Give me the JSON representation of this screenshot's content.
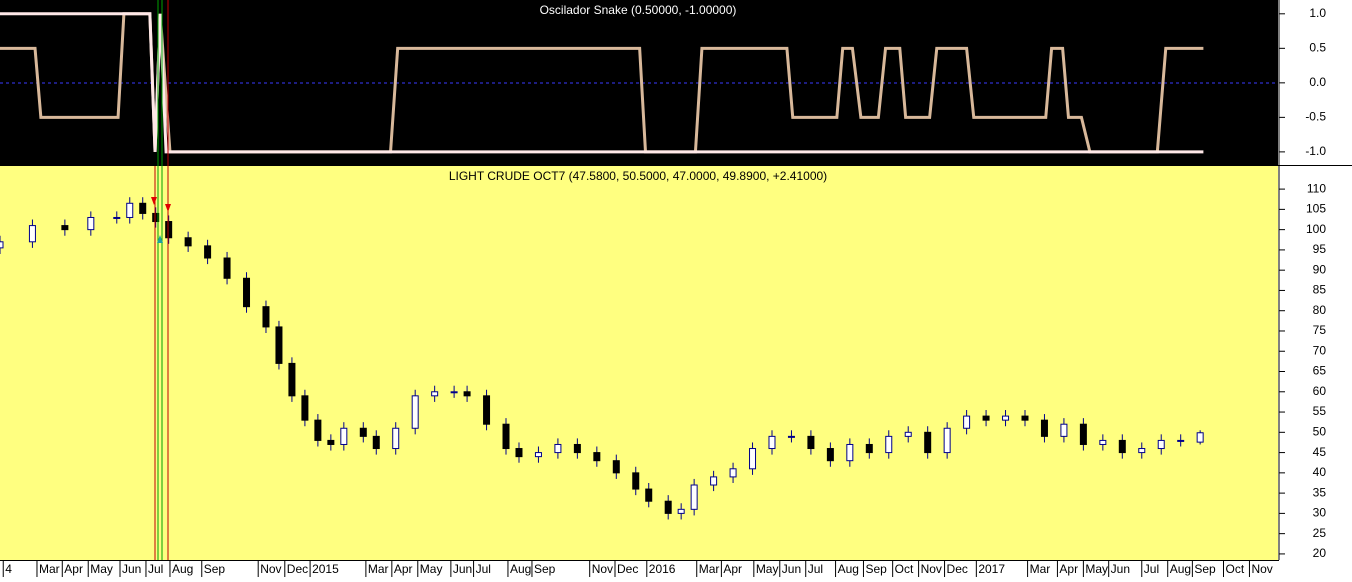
{
  "chart_data": [
    {
      "type": "line",
      "title": "Oscilador Snake (0.50000, -1.00000)",
      "xlim": [
        0,
        197
      ],
      "ylim": [
        -1.19,
        1.2
      ],
      "yticks": [
        {
          "value": 1,
          "label": "1.0"
        },
        0.5,
        {
          "value": 0,
          "label": "0.0"
        },
        -0.5,
        {
          "value": -1,
          "label": "-1.0"
        }
      ],
      "series": [
        {
          "color": "#d8b89a",
          "x": [
            0,
            5.4,
            6.3,
            18.2,
            19.1,
            23.1,
            23.9,
            24.7,
            26.2,
            60.2,
            61.3,
            98.6,
            99.5,
            107.2,
            108.2,
            121.3,
            122.2,
            129,
            129.9,
            131.4,
            132.7,
            135.4,
            136.5,
            138.7,
            139.6,
            143.3,
            144.4,
            149,
            150.1,
            161.2,
            162.1,
            163.8,
            164.7,
            166.7,
            168,
            178.4,
            179.7,
            185.5
          ],
          "values": [
            0.5,
            0.5,
            -0.5,
            -0.5,
            1,
            1,
            -1,
            1,
            -1,
            -1,
            0.5,
            0.5,
            -1,
            -1,
            0.5,
            0.5,
            -0.5,
            -0.5,
            0.5,
            0.5,
            -0.5,
            -0.5,
            0.5,
            0.5,
            -0.5,
            -0.5,
            0.5,
            0.5,
            -0.5,
            -0.5,
            0.5,
            0.5,
            -0.5,
            -0.5,
            -1,
            -1,
            0.5,
            0.5
          ]
        },
        {
          "color": "#ffe8e8",
          "x": [
            0,
            23.1,
            23.9,
            24.7,
            25.6,
            185.5
          ],
          "values": [
            1,
            1,
            -1,
            1,
            -1,
            -1
          ]
        }
      ]
    },
    {
      "type": "candlestick",
      "title": "LIGHT CRUDE OCT7 (47.5800, 50.5000, 47.0000, 49.8900, +2.41000)",
      "xlim": [
        0,
        197
      ],
      "ylim": [
        18.5,
        115.7
      ],
      "yticks": [
        110,
        105,
        100,
        95,
        90,
        85,
        80,
        75,
        70,
        65,
        60,
        55,
        50,
        45,
        40,
        35,
        30,
        25,
        20
      ],
      "xticks": [
        {
          "value": 0.5,
          "label": "4"
        },
        {
          "value": 5.7,
          "label": "Mar"
        },
        {
          "value": 9.6,
          "label": "Apr"
        },
        {
          "value": 13.6,
          "label": "May"
        },
        {
          "value": 18.5,
          "label": "Jun"
        },
        {
          "value": 22.5,
          "label": "Jul"
        },
        {
          "value": 26.2,
          "label": "Aug"
        },
        {
          "value": 31.1,
          "label": "Sep"
        },
        {
          "value": 39.8,
          "label": "Nov"
        },
        {
          "value": 43.9,
          "label": "Dec"
        },
        {
          "value": 47.8,
          "label": "2015"
        },
        {
          "value": 56.4,
          "label": "Mar"
        },
        {
          "value": 60.4,
          "label": "Apr"
        },
        {
          "value": 64.4,
          "label": "May"
        },
        {
          "value": 69.5,
          "label": "Jun"
        },
        {
          "value": 73.0,
          "label": "Jul"
        },
        {
          "value": 78.3,
          "label": "Aug"
        },
        {
          "value": 82.0,
          "label": "Sep"
        },
        {
          "value": 90.9,
          "label": "Nov"
        },
        {
          "value": 94.8,
          "label": "Dec"
        },
        {
          "value": 99.7,
          "label": "2016"
        },
        {
          "value": 107.4,
          "label": "Mar"
        },
        {
          "value": 111.2,
          "label": "Apr"
        },
        {
          "value": 116.2,
          "label": "May"
        },
        {
          "value": 120.2,
          "label": "Jun"
        },
        {
          "value": 124.2,
          "label": "Jul"
        },
        {
          "value": 128.8,
          "label": "Aug"
        },
        {
          "value": 133.1,
          "label": "Sep"
        },
        {
          "value": 137.6,
          "label": "Oct"
        },
        {
          "value": 141.6,
          "label": "Nov"
        },
        {
          "value": 145.6,
          "label": "Dec"
        },
        {
          "value": 150.5,
          "label": "2017"
        },
        {
          "value": 158.4,
          "label": "Mar"
        },
        {
          "value": 163.0,
          "label": "Apr"
        },
        {
          "value": 167.0,
          "label": "May"
        },
        {
          "value": 170.9,
          "label": "Jun"
        },
        {
          "value": 176.0,
          "label": "Jul"
        },
        {
          "value": 180.0,
          "label": "Aug"
        },
        {
          "value": 183.8,
          "label": "Sep"
        },
        {
          "value": 188.6,
          "label": "Oct"
        },
        {
          "value": 192.6,
          "label": "Nov"
        }
      ],
      "up_color": "#ffffff",
      "down_color": "#000000",
      "wick_color": "#00008b",
      "x": [
        0,
        5,
        10,
        14,
        18,
        20,
        22,
        24,
        26,
        29,
        32,
        35,
        38,
        41,
        43,
        45,
        47,
        49,
        51,
        53,
        56,
        58,
        61,
        64,
        67,
        70,
        72,
        75,
        78,
        80,
        83,
        86,
        89,
        92,
        95,
        98,
        100,
        103,
        105,
        107,
        110,
        113,
        116,
        119,
        122,
        125,
        128,
        131,
        134,
        137,
        140,
        143,
        146,
        149,
        152,
        155,
        158,
        161,
        164,
        167,
        170,
        173,
        176,
        179,
        182,
        185
      ],
      "open": [
        95.5,
        97,
        101,
        100,
        103,
        103,
        106.5,
        104,
        102,
        98,
        96,
        93,
        88,
        81,
        76,
        67,
        59,
        53,
        48,
        47,
        51,
        49,
        46,
        51,
        59,
        60,
        60,
        59,
        52,
        46,
        44,
        45,
        47,
        45,
        43,
        40,
        36,
        33,
        30,
        31,
        37,
        39,
        41,
        46,
        49,
        49,
        46,
        43,
        47,
        45,
        49,
        50,
        45,
        51,
        54,
        53,
        54,
        53,
        49,
        52,
        47,
        48,
        45,
        46,
        48,
        47.58
      ],
      "high": [
        98.5,
        102.5,
        102.5,
        104.5,
        104.5,
        108,
        108,
        105.5,
        103.5,
        99.5,
        97.5,
        94.5,
        89.5,
        82.5,
        77.5,
        68.5,
        60.5,
        54.5,
        49.5,
        52.5,
        52.5,
        50.5,
        52.5,
        60.5,
        61.5,
        61.5,
        61.5,
        60.5,
        53.5,
        47.5,
        46.5,
        48.5,
        48.5,
        46.5,
        44.5,
        41.5,
        37.5,
        34.5,
        32.5,
        38.5,
        40.5,
        42.5,
        47.5,
        50.5,
        50.5,
        50.5,
        47.5,
        48.5,
        48.5,
        50.5,
        51.5,
        51.5,
        52.5,
        55.5,
        55.5,
        55.5,
        55.5,
        54.5,
        53.5,
        53.5,
        49.5,
        49.5,
        47.5,
        49.5,
        49.5,
        50.5
      ],
      "low": [
        94,
        95.5,
        98.5,
        98.5,
        101.5,
        101.5,
        102.5,
        100.5,
        96.5,
        94.5,
        91.5,
        86.5,
        79.5,
        74.5,
        65.5,
        57.5,
        51.5,
        46.5,
        45.5,
        45.5,
        47.5,
        44.5,
        44.5,
        49.5,
        57.5,
        58.5,
        57.5,
        50.5,
        44.5,
        42.5,
        42.5,
        43.5,
        43.5,
        41.5,
        38.5,
        34.5,
        31.5,
        28.5,
        28.5,
        29.5,
        35.5,
        37.5,
        39.5,
        44.5,
        47.5,
        44.5,
        41.5,
        41.5,
        43.5,
        43.5,
        47.5,
        43.5,
        43.5,
        49.5,
        51.5,
        51.5,
        51.5,
        47.5,
        47.5,
        45.5,
        45.5,
        43.5,
        43.5,
        44.5,
        46.5,
        47
      ],
      "close": [
        97,
        101,
        100,
        103,
        103,
        106.5,
        104,
        102,
        98,
        96,
        93,
        88,
        81,
        76,
        67,
        59,
        53,
        48,
        47,
        51,
        49,
        46,
        51,
        59,
        60,
        60,
        59,
        52,
        46,
        44,
        45,
        47,
        45,
        43,
        40,
        36,
        33,
        30,
        31,
        37,
        39,
        41,
        46,
        49,
        49,
        46,
        43,
        47,
        45,
        49,
        50,
        45,
        51,
        54,
        53,
        54,
        53,
        49,
        52,
        47,
        48,
        45,
        46,
        48,
        48,
        49.89
      ]
    }
  ]
}
